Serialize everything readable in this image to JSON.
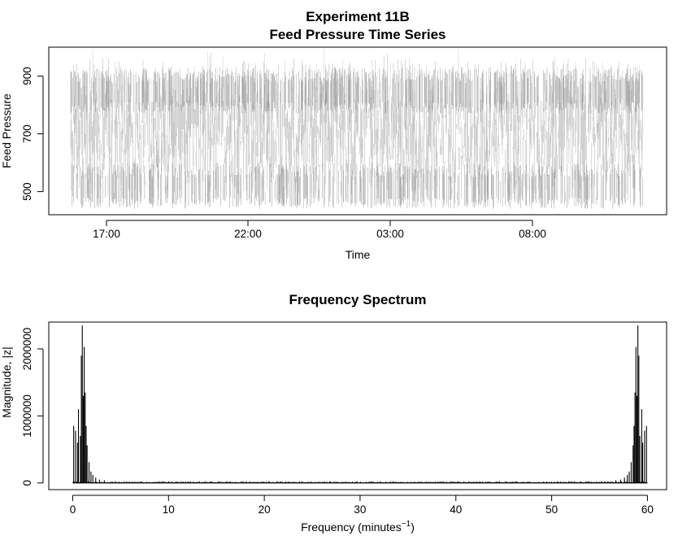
{
  "chart_data": [
    {
      "type": "line",
      "title": "Experiment 11B",
      "subtitle": "Feed Pressure Time Series",
      "xlabel": "Time",
      "ylabel": "Feed Pressure",
      "x_tick_labels": [
        "17:00",
        "22:00",
        "03:00",
        "08:00"
      ],
      "y_ticks": [
        500,
        700,
        900
      ],
      "ylim": [
        420,
        1000
      ],
      "series": [
        {
          "values": [
            720,
            710,
            705,
            712,
            715,
            708,
            700,
            703,
            710,
            718,
            716,
            712
          ],
          "range_low": [
            450,
            455,
            440,
            450,
            448,
            452,
            445,
            450,
            455,
            448,
            440,
            450
          ],
          "range_high": [
            965,
            960,
            950,
            958,
            962,
            955,
            978,
            960,
            955,
            960,
            962,
            955
          ],
          "dense_bands": [
            520,
            850
          ],
          "color": "#555555"
        }
      ],
      "grid": false
    },
    {
      "type": "bar",
      "title": "Frequency Spectrum",
      "xlabel": "Frequency (minutes",
      "xlabel_superscript": "−1",
      "xlabel_suffix": ")",
      "ylabel": "Magnitude, |z|",
      "x_ticks": [
        0,
        10,
        20,
        30,
        40,
        50,
        60
      ],
      "y_ticks": [
        0,
        1000000,
        2000000
      ],
      "xlim": [
        -2.5,
        62
      ],
      "ylim": [
        -100000,
        2400000
      ],
      "series": [
        {
          "x": [
            0.1,
            0.3,
            0.5,
            0.6,
            0.8,
            0.9,
            1.0,
            1.1,
            1.2,
            1.3,
            1.4,
            1.5,
            1.7,
            1.9,
            2.1,
            2.4,
            2.8,
            3.3
          ],
          "values": [
            850000,
            780000,
            600000,
            1100000,
            700000,
            1900000,
            2350000,
            1300000,
            2030000,
            1350000,
            850000,
            560000,
            310000,
            170000,
            120000,
            80000,
            50000,
            40000
          ],
          "mirror_about": 60,
          "noise_floor": 20000,
          "color": "#000000"
        }
      ],
      "grid": false
    }
  ]
}
